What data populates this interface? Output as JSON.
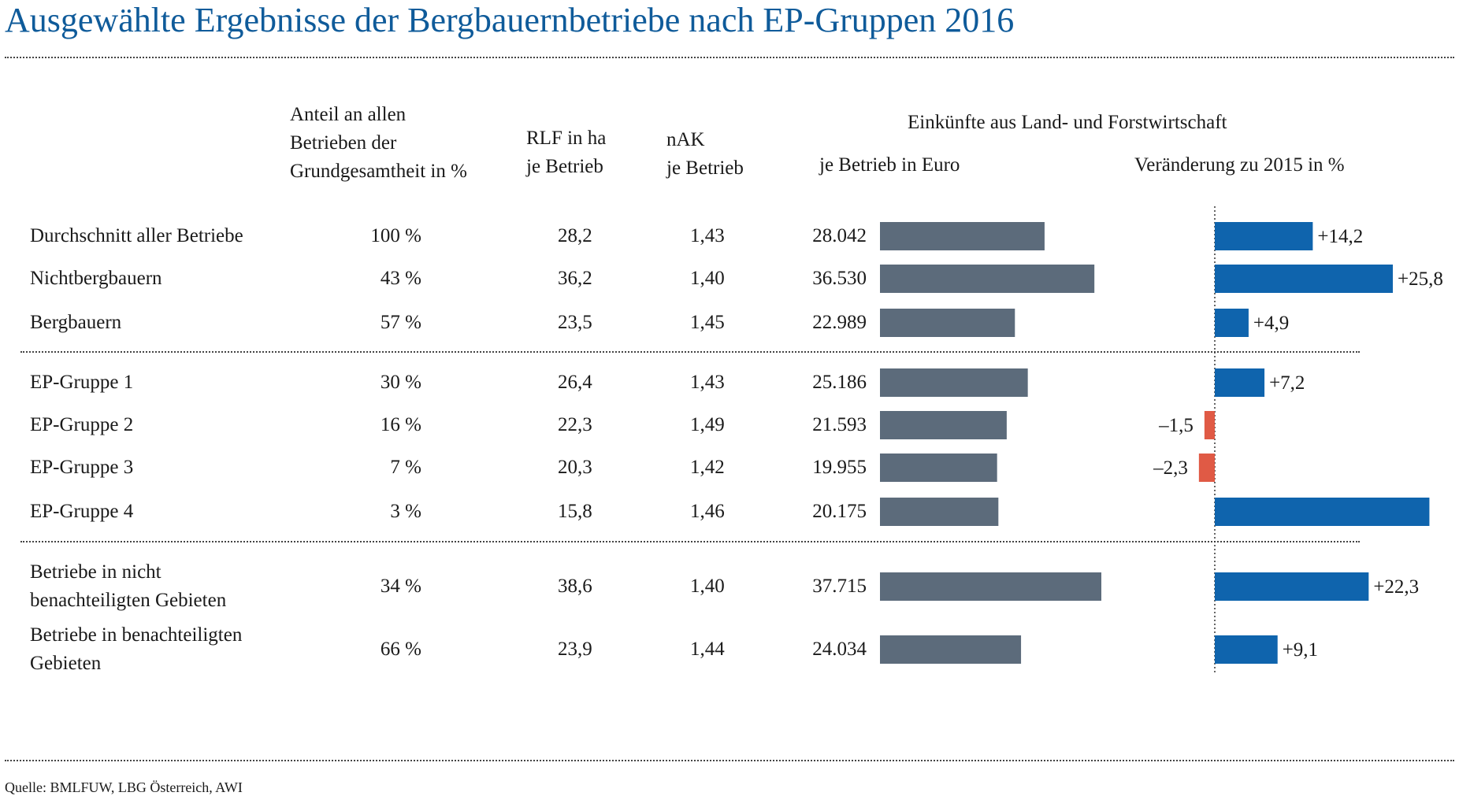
{
  "title": "Ausgewählte Ergebnisse der Bergbauernbetriebe nach EP-Gruppen 2016",
  "source": "Quelle: BMLFUW, LBG Österreich, AWI",
  "colors": {
    "title": "#0f5b9a",
    "income_bar": "#5c6b7b",
    "positive_change": "#0f64ad",
    "negative_change": "#e05a45"
  },
  "headers": {
    "share_line1": "Anteil an allen",
    "share_line2": "Betrieben der",
    "share_line3": "Grundgesamtheit in %",
    "rlf_line1": "RLF in ha",
    "rlf_line2": "je Betrieb",
    "nak_line1": "nAK",
    "nak_line2": "je Betrieb",
    "income_group": "Einkünfte aus Land- und Forstwirtschaft",
    "income_per_farm": "je Betrieb in Euro",
    "change": "Veränderung zu 2015 in %"
  },
  "rows": [
    {
      "label_line1": "Durchschnitt aller Betriebe",
      "label_line2": "",
      "share": "100 %",
      "rlf": "28,2",
      "nak": "1,43",
      "income_label": "28.042",
      "change_label": "+14,2"
    },
    {
      "label_line1": "Nichtbergbauern",
      "label_line2": "",
      "share": "43 %",
      "rlf": "36,2",
      "nak": "1,40",
      "income_label": "36.530",
      "change_label": "+25,8"
    },
    {
      "label_line1": "Bergbauern",
      "label_line2": "",
      "share": "57 %",
      "rlf": "23,5",
      "nak": "1,45",
      "income_label": "22.989",
      "change_label": "+4,9"
    },
    {
      "label_line1": "EP-Gruppe 1",
      "label_line2": "",
      "share": "30 %",
      "rlf": "26,4",
      "nak": "1,43",
      "income_label": "25.186",
      "change_label": "+7,2"
    },
    {
      "label_line1": "EP-Gruppe 2",
      "label_line2": "",
      "share": "16 %",
      "rlf": "22,3",
      "nak": "1,49",
      "income_label": "21.593",
      "change_label": "–1,5"
    },
    {
      "label_line1": "EP-Gruppe 3",
      "label_line2": "",
      "share": "7 %",
      "rlf": "20,3",
      "nak": "1,42",
      "income_label": "19.955",
      "change_label": "–2,3"
    },
    {
      "label_line1": "EP-Gruppe 4",
      "label_line2": "",
      "share": "3 %",
      "rlf": "15,8",
      "nak": "1,46",
      "income_label": "20.175",
      "change_label": ""
    },
    {
      "label_line1": "Betriebe in nicht",
      "label_line2": "benachteiligten Gebieten",
      "share": "34 %",
      "rlf": "38,6",
      "nak": "1,40",
      "income_label": "37.715",
      "change_label": "+22,3"
    },
    {
      "label_line1": "Betriebe in benachteiligten",
      "label_line2": "Gebieten",
      "share": "66 %",
      "rlf": "23,9",
      "nak": "1,44",
      "income_label": "24.034",
      "change_label": "+9,1"
    }
  ],
  "chart_data": [
    {
      "type": "bar",
      "orientation": "horizontal",
      "categories": [
        "Durchschnitt aller Betriebe",
        "Nichtbergbauern",
        "Bergbauern",
        "EP-Gruppe 1",
        "EP-Gruppe 2",
        "EP-Gruppe 3",
        "EP-Gruppe 4",
        "Betriebe in nicht benachteiligten Gebieten",
        "Betriebe in benachteiligten Gebieten"
      ],
      "values": [
        28042,
        36530,
        22989,
        25186,
        21593,
        19955,
        20175,
        37715,
        24034
      ],
      "title": "je Betrieb in Euro",
      "xlim": [
        0,
        40000
      ]
    },
    {
      "type": "bar",
      "orientation": "horizontal",
      "categories": [
        "Durchschnitt aller Betriebe",
        "Nichtbergbauern",
        "Bergbauern",
        "EP-Gruppe 1",
        "EP-Gruppe 2",
        "EP-Gruppe 3",
        "EP-Gruppe 4",
        "Betriebe in nicht benachteiligten Gebieten",
        "Betriebe in benachteiligten Gebieten"
      ],
      "values": [
        14.2,
        25.8,
        4.9,
        7.2,
        -1.5,
        -2.3,
        31.1,
        22.3,
        9.1
      ],
      "title": "Veränderung zu 2015 in %",
      "xlim": [
        -4,
        34
      ]
    }
  ]
}
